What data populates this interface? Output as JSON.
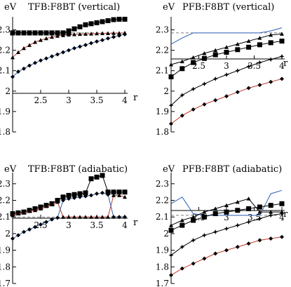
{
  "chart_data": [
    {
      "type": "line",
      "title": "TFB:F8BT (vertical)",
      "ylabel": "eV",
      "xlabel": "r",
      "xlim": [
        2.0,
        4.0
      ],
      "ylim": [
        1.8,
        2.35
      ],
      "xticks": [
        "2.5",
        "3",
        "3.5",
        "4"
      ],
      "yticks": [
        "1.8",
        "1.9",
        "2",
        "2.1",
        "2.2",
        "2.3"
      ],
      "reference_y": 2.285,
      "series": [
        {
          "marker": "square",
          "color": "#000000",
          "x": [
            2.0,
            2.1,
            2.2,
            2.3,
            2.4,
            2.5,
            2.6,
            2.7,
            2.8,
            2.9,
            3.0,
            3.1,
            3.2,
            3.3,
            3.4,
            3.5,
            3.6,
            3.7,
            3.8,
            3.9,
            4.0
          ],
          "y": [
            2.285,
            2.285,
            2.285,
            2.285,
            2.285,
            2.285,
            2.285,
            2.285,
            2.285,
            2.285,
            2.295,
            2.305,
            2.315,
            2.325,
            2.33,
            2.335,
            2.34,
            2.345,
            2.35,
            2.352,
            2.352
          ]
        },
        {
          "marker": "triangle",
          "color": "#c0392b",
          "x": [
            2.0,
            2.1,
            2.2,
            2.3,
            2.4,
            2.5,
            2.6,
            2.7,
            2.8,
            2.9,
            3.0,
            3.1,
            3.2,
            3.3,
            3.4,
            3.5,
            3.6,
            3.7,
            3.8,
            3.9,
            4.0
          ],
          "y": [
            2.165,
            2.19,
            2.21,
            2.225,
            2.24,
            2.25,
            2.258,
            2.265,
            2.27,
            2.273,
            2.276,
            2.278,
            2.279,
            2.28,
            2.281,
            2.282,
            2.283,
            2.283,
            2.284,
            2.284,
            2.285
          ]
        },
        {
          "marker": "diamond",
          "color": "#2b5fb5",
          "x": [
            2.0,
            2.1,
            2.2,
            2.3,
            2.4,
            2.5,
            2.6,
            2.7,
            2.8,
            2.9,
            3.0,
            3.1,
            3.2,
            3.3,
            3.4,
            3.5,
            3.6,
            3.7,
            3.8,
            3.9,
            4.0
          ],
          "y": [
            2.07,
            2.095,
            2.11,
            2.125,
            2.138,
            2.15,
            2.16,
            2.17,
            2.18,
            2.19,
            2.2,
            2.21,
            2.218,
            2.226,
            2.235,
            2.243,
            2.25,
            2.258,
            2.265,
            2.272,
            2.278
          ]
        },
        {
          "marker": "square",
          "color": "#000000",
          "x": [
            2.0,
            2.1,
            2.2,
            2.3,
            2.4,
            2.5,
            2.6,
            2.7,
            2.8,
            2.9,
            3.0
          ],
          "y": [
            2.285,
            2.285,
            2.285,
            2.285,
            2.285,
            2.285,
            2.285,
            2.285,
            2.285,
            2.285,
            2.285
          ]
        }
      ]
    },
    {
      "type": "line",
      "title": "PFB:F8BT (vertical)",
      "ylabel": "eV",
      "xlabel": "r",
      "xlim": [
        2.0,
        4.0
      ],
      "ylim": [
        1.8,
        2.35
      ],
      "xticks": [
        "2.5",
        "3",
        "3.5",
        "4"
      ],
      "yticks": [
        "1.8",
        "1.9",
        "2",
        "2.1",
        "2.2",
        "2.3"
      ],
      "reference_y": 2.285,
      "series": [
        {
          "marker": "none",
          "color": "#2b5fb5",
          "x": [
            2.0,
            2.2,
            2.4,
            2.6,
            2.8,
            3.0,
            3.2,
            3.4,
            3.6,
            3.8,
            4.0
          ],
          "y": [
            2.23,
            2.26,
            2.285,
            2.285,
            2.285,
            2.285,
            2.285,
            2.285,
            2.285,
            2.295,
            2.31
          ]
        },
        {
          "marker": "triangle",
          "color": "#000000",
          "x": [
            2.0,
            2.2,
            2.4,
            2.6,
            2.8,
            3.0,
            3.2,
            3.4,
            3.6,
            3.8,
            4.0
          ],
          "y": [
            2.13,
            2.145,
            2.165,
            2.185,
            2.2,
            2.215,
            2.23,
            2.245,
            2.26,
            2.275,
            2.28
          ]
        },
        {
          "marker": "square",
          "color": "#000000",
          "x": [
            2.0,
            2.2,
            2.4,
            2.6,
            2.8,
            3.0,
            3.2,
            3.4,
            3.6,
            3.8,
            4.0
          ],
          "y": [
            2.07,
            2.11,
            2.14,
            2.16,
            2.178,
            2.19,
            2.203,
            2.215,
            2.227,
            2.237,
            2.245
          ]
        },
        {
          "marker": "star",
          "color": "#000000",
          "x": [
            2.0,
            2.2,
            2.4,
            2.6,
            2.8,
            3.0,
            3.2,
            3.4,
            3.6,
            3.8,
            4.0
          ],
          "y": [
            1.93,
            1.98,
            2.01,
            2.035,
            2.06,
            2.08,
            2.1,
            2.12,
            2.14,
            2.155,
            2.17
          ]
        },
        {
          "marker": "diamond",
          "color": "#c0392b",
          "x": [
            2.0,
            2.2,
            2.4,
            2.6,
            2.8,
            3.0,
            3.2,
            3.4,
            3.6,
            3.8,
            4.0
          ],
          "y": [
            1.84,
            1.88,
            1.91,
            1.935,
            1.955,
            1.975,
            1.995,
            2.015,
            2.03,
            2.045,
            2.06
          ]
        }
      ]
    },
    {
      "type": "line",
      "title": "TFB:F8BT (adiabatic)",
      "ylabel": "eV",
      "xlabel": "r",
      "xlim": [
        2.0,
        4.0
      ],
      "ylim": [
        1.7,
        2.35
      ],
      "xticks": [
        "2.5",
        "3",
        "3.5",
        "4"
      ],
      "yticks": [
        "1.7",
        "1.8",
        "1.9",
        "2",
        "2.1",
        "2.2",
        "2.3"
      ],
      "reference_y": 2.1,
      "series": [
        {
          "marker": "square",
          "color": "#000000",
          "x": [
            2.0,
            2.1,
            2.2,
            2.3,
            2.4,
            2.5,
            2.6,
            2.7,
            2.8,
            2.9,
            3.0,
            3.1,
            3.2,
            3.3,
            3.4,
            3.5,
            3.6,
            3.7,
            3.8,
            3.9,
            4.0
          ],
          "y": [
            2.12,
            2.125,
            2.13,
            2.14,
            2.15,
            2.16,
            2.17,
            2.18,
            2.2,
            2.22,
            2.23,
            2.235,
            2.24,
            2.245,
            2.33,
            2.34,
            2.35,
            2.25,
            2.25,
            2.25,
            2.25
          ]
        },
        {
          "marker": "triangle",
          "color": "#c0392b",
          "x": [
            2.0,
            2.1,
            2.2,
            2.3,
            2.4,
            2.5,
            2.6,
            2.7,
            2.8,
            2.9,
            3.0,
            3.1,
            3.2,
            3.3,
            3.4,
            3.5,
            3.6,
            3.7,
            3.8,
            3.9,
            4.0
          ],
          "y": [
            2.11,
            2.12,
            2.125,
            2.135,
            2.14,
            2.15,
            2.165,
            2.175,
            2.19,
            2.1,
            2.1,
            2.1,
            2.1,
            2.1,
            2.1,
            2.1,
            2.1,
            2.1,
            2.23,
            2.23,
            2.22
          ]
        },
        {
          "marker": "diamond",
          "color": "#2b5fb5",
          "x": [
            2.0,
            2.1,
            2.2,
            2.3,
            2.4,
            2.5,
            2.6,
            2.7,
            2.8,
            2.9,
            3.0,
            3.1,
            3.2,
            3.3,
            3.4,
            3.5,
            3.6,
            3.7,
            3.8,
            3.9,
            4.0
          ],
          "y": [
            1.97,
            1.99,
            2.01,
            2.025,
            2.04,
            2.055,
            2.07,
            2.085,
            2.095,
            2.2,
            2.21,
            2.215,
            2.22,
            2.225,
            2.23,
            2.24,
            2.245,
            2.235,
            2.1,
            2.1,
            2.1
          ]
        }
      ]
    },
    {
      "type": "line",
      "title": "PFB:F8BT (adiabatic)",
      "ylabel": "eV",
      "xlabel": "r",
      "xlim": [
        2.0,
        4.0
      ],
      "ylim": [
        1.7,
        2.35
      ],
      "xticks": [
        "2.5",
        "3",
        "3.5",
        "4"
      ],
      "yticks": [
        "1.7",
        "1.8",
        "1.9",
        "2",
        "2.1",
        "2.2",
        "2.3"
      ],
      "reference_y": 2.11,
      "series": [
        {
          "marker": "none",
          "color": "#2b5fb5",
          "x": [
            2.0,
            2.2,
            2.4,
            2.6,
            2.8,
            3.0,
            3.2,
            3.4,
            3.6,
            3.8,
            4.0
          ],
          "y": [
            2.18,
            2.22,
            2.12,
            2.11,
            2.11,
            2.11,
            2.11,
            2.11,
            2.11,
            2.24,
            2.26
          ]
        },
        {
          "marker": "triangle",
          "color": "#000000",
          "x": [
            2.0,
            2.2,
            2.4,
            2.6,
            2.8,
            3.0,
            3.2,
            3.4,
            3.6,
            3.8,
            4.0
          ],
          "y": [
            2.05,
            2.08,
            2.1,
            2.13,
            2.15,
            2.17,
            2.19,
            2.21,
            2.13,
            2.13,
            2.13
          ]
        },
        {
          "marker": "square",
          "color": "#000000",
          "x": [
            2.0,
            2.2,
            2.4,
            2.6,
            2.8,
            3.0,
            3.2,
            3.4,
            3.6,
            3.8,
            4.0
          ],
          "y": [
            2.02,
            2.05,
            2.08,
            2.1,
            2.12,
            2.13,
            2.14,
            2.15,
            2.16,
            2.17,
            2.18
          ]
        },
        {
          "marker": "star",
          "color": "#000000",
          "x": [
            2.0,
            2.2,
            2.4,
            2.6,
            2.8,
            3.0,
            3.2,
            3.4,
            3.6,
            3.8,
            4.0
          ],
          "y": [
            1.87,
            1.92,
            1.96,
            1.99,
            2.01,
            2.03,
            2.05,
            2.07,
            2.09,
            2.11,
            2.12
          ]
        },
        {
          "marker": "diamond",
          "color": "#c0392b",
          "x": [
            2.0,
            2.2,
            2.4,
            2.6,
            2.8,
            3.0,
            3.2,
            3.4,
            3.6,
            3.8,
            4.0
          ],
          "y": [
            1.75,
            1.79,
            1.82,
            1.85,
            1.88,
            1.9,
            1.92,
            1.94,
            1.96,
            1.97,
            1.98
          ]
        }
      ]
    }
  ]
}
